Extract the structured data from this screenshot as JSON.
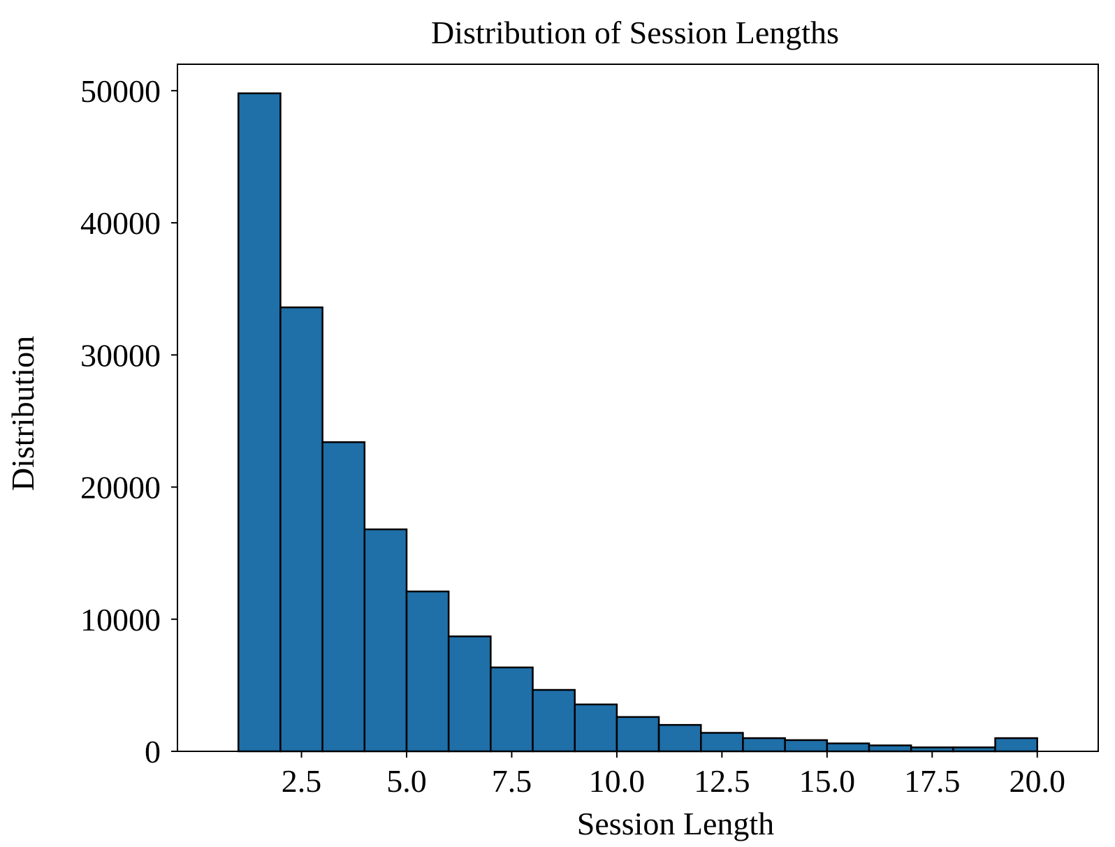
{
  "chart_data": {
    "type": "bar",
    "title": "Distribution of Session Lengths",
    "xlabel": "Session Length",
    "ylabel": "Distribution",
    "bin_edges": [
      1,
      2,
      3,
      4,
      5,
      6,
      7,
      8,
      9,
      10,
      11,
      12,
      13,
      14,
      15,
      16,
      17,
      18,
      19,
      20
    ],
    "values": [
      49800,
      33600,
      23400,
      16800,
      12100,
      8700,
      6350,
      4650,
      3550,
      2600,
      2000,
      1400,
      1000,
      850,
      600,
      450,
      300,
      300,
      1000
    ],
    "xlim": [
      -0.45,
      21.45
    ],
    "ylim": [
      0,
      52000
    ],
    "x_ticks": [
      2.5,
      5.0,
      7.5,
      10.0,
      12.5,
      15.0,
      17.5,
      20.0
    ],
    "x_tick_labels": [
      "2.5",
      "5.0",
      "7.5",
      "10.0",
      "12.5",
      "15.0",
      "17.5",
      "20.0"
    ],
    "y_ticks": [
      0,
      10000,
      20000,
      30000,
      40000,
      50000
    ],
    "y_tick_labels": [
      "0",
      "10000",
      "20000",
      "30000",
      "40000",
      "50000"
    ],
    "grid": false,
    "legend": "none",
    "colors": {
      "bar_fill": "#1f6fa8",
      "bar_edge": "#000000",
      "axis": "#000000"
    }
  }
}
